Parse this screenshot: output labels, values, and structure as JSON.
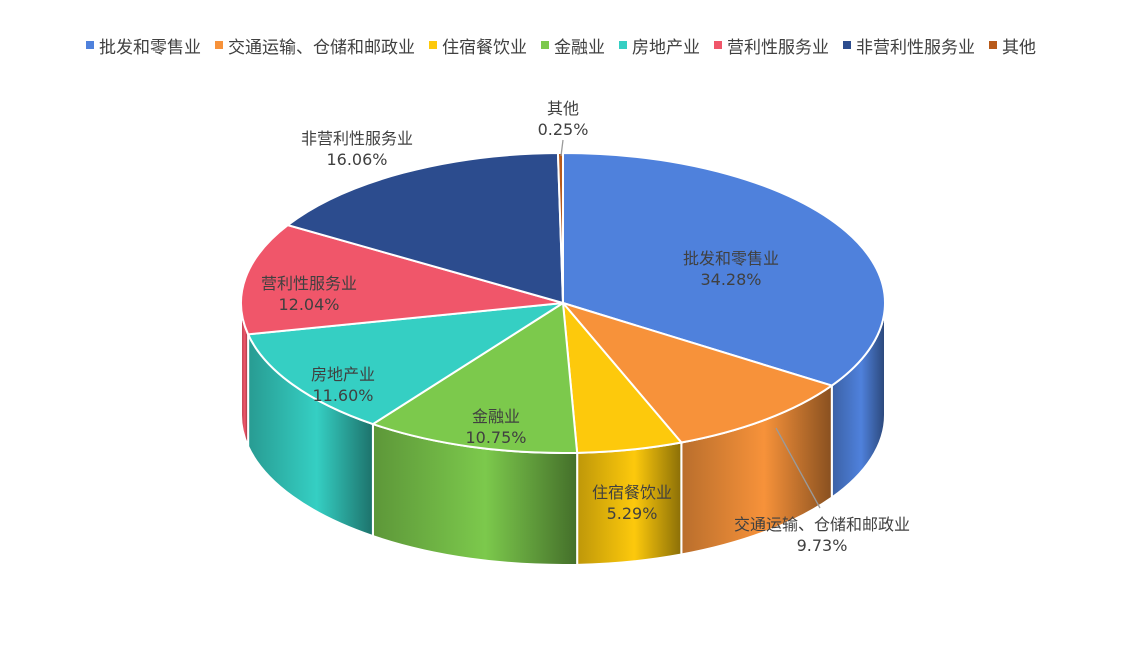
{
  "chart_data": {
    "type": "pie",
    "style": "3d-exploded",
    "title": "",
    "legend_position": "top",
    "series": [
      {
        "name": "批发和零售业",
        "value": 34.28,
        "label": "34.28%",
        "color": "#4F81DC"
      },
      {
        "name": "交通运输、仓储和邮政业",
        "value": 9.73,
        "label": "9.73%",
        "color": "#F7923A"
      },
      {
        "name": "住宿餐饮业",
        "value": 5.29,
        "label": "5.29%",
        "color": "#FDC90C"
      },
      {
        "name": "金融业",
        "value": 10.75,
        "label": "10.75%",
        "color": "#7CC94C"
      },
      {
        "name": "房地产业",
        "value": 11.6,
        "label": "11.60%",
        "color": "#35CFC3"
      },
      {
        "name": "营利性服务业",
        "value": 12.04,
        "label": "12.04%",
        "color": "#F0566A"
      },
      {
        "name": "非营利性服务业",
        "value": 16.06,
        "label": "16.06%",
        "color": "#2C4C8E"
      },
      {
        "name": "其他",
        "value": 0.25,
        "label": "0.25%",
        "color": "#B85A1A"
      }
    ]
  }
}
